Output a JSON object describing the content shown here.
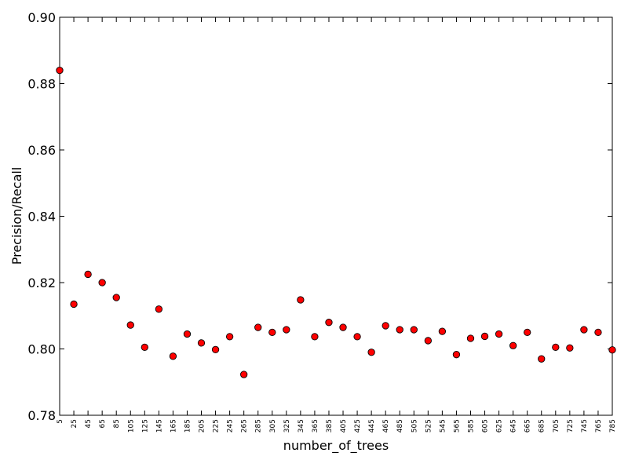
{
  "chart_data": {
    "type": "scatter",
    "title": "",
    "xlabel": "number_of_trees",
    "ylabel": "Precision/Recall",
    "xlim": [
      5,
      785
    ],
    "ylim": [
      0.78,
      0.9
    ],
    "yticks": [
      "0.78",
      "0.80",
      "0.82",
      "0.84",
      "0.86",
      "0.88",
      "0.90"
    ],
    "grid": false,
    "legend": "none",
    "marker_color": "#ff0000",
    "x": [
      5,
      25,
      45,
      65,
      85,
      105,
      125,
      145,
      165,
      185,
      205,
      225,
      245,
      265,
      285,
      305,
      325,
      345,
      365,
      385,
      405,
      425,
      445,
      465,
      485,
      505,
      525,
      545,
      565,
      585,
      605,
      625,
      645,
      665,
      685,
      705,
      725,
      745,
      765,
      785
    ],
    "y": [
      0.884,
      0.8135,
      0.8225,
      0.82,
      0.8155,
      0.8072,
      0.8005,
      0.812,
      0.7978,
      0.8045,
      0.8018,
      0.7998,
      0.8037,
      0.7923,
      0.8065,
      0.805,
      0.8058,
      0.8148,
      0.8037,
      0.808,
      0.8065,
      0.8037,
      0.799,
      0.807,
      0.8058,
      0.8058,
      0.8025,
      0.8053,
      0.7983,
      0.8032,
      0.8038,
      0.8045,
      0.801,
      0.805,
      0.797,
      0.8005,
      0.8003,
      0.8058,
      0.805,
      0.7997
    ]
  }
}
